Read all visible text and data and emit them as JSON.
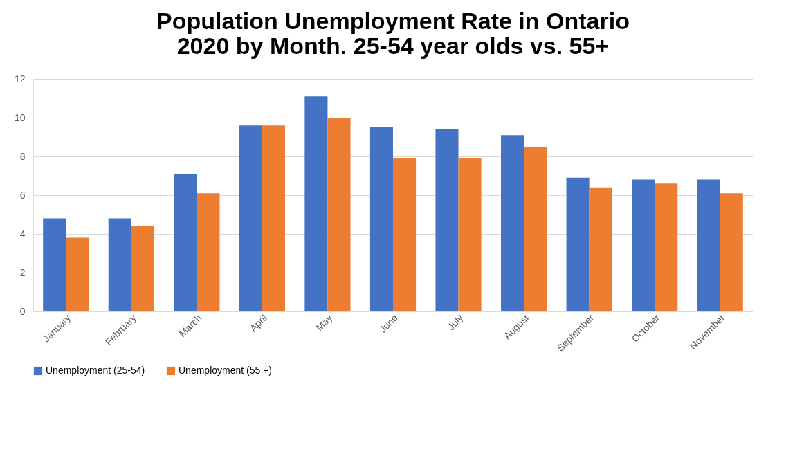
{
  "chart_data": {
    "type": "bar",
    "title": [
      "Population Unemployment Rate in Ontario",
      "2020 by Month. 25-54 year olds vs. 55+"
    ],
    "categories": [
      "January",
      "February",
      "March",
      "April",
      "May",
      "June",
      "July",
      "August",
      "September",
      "October",
      "November"
    ],
    "series": [
      {
        "name": "Unemployment (25-54)",
        "color": "#4472c4",
        "values": [
          4.8,
          4.8,
          7.1,
          9.6,
          11.1,
          9.5,
          9.4,
          9.1,
          6.9,
          6.8,
          6.8
        ]
      },
      {
        "name": "Unemployment (55 +)",
        "color": "#ed7d31",
        "values": [
          3.8,
          4.4,
          6.1,
          9.6,
          10.0,
          7.9,
          7.9,
          8.5,
          6.4,
          6.6,
          6.1
        ]
      }
    ],
    "ylim": [
      0,
      12
    ],
    "yticks": [
      0,
      2,
      4,
      6,
      8,
      10,
      12
    ],
    "grid": "y",
    "legend": "bottom"
  }
}
